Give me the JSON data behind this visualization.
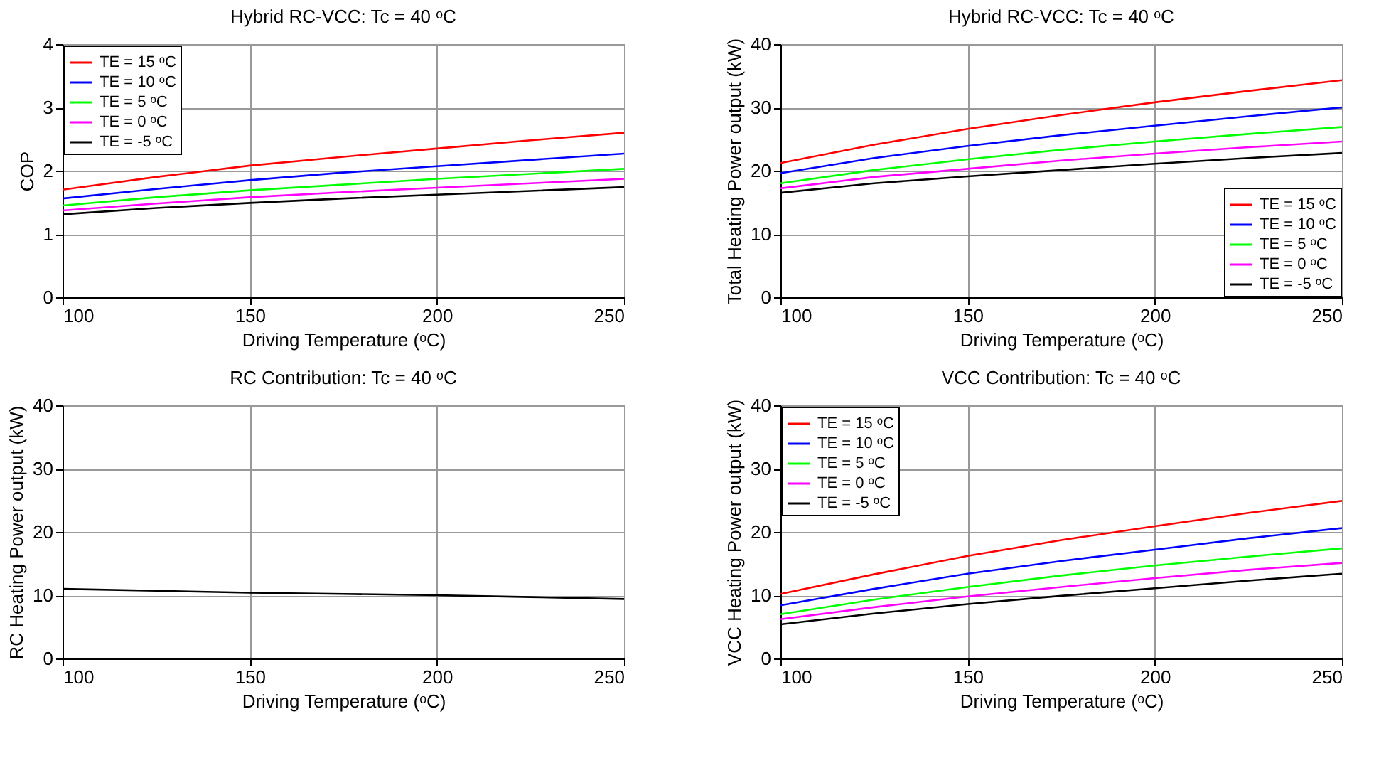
{
  "chart_data": [
    {
      "type": "line",
      "title": "Hybrid RC-VCC: Tc = 40 ᵒC",
      "xlabel": "Driving Temperature (ᵒC)",
      "ylabel": "COP",
      "x": [
        100,
        125,
        150,
        175,
        200,
        225,
        250
      ],
      "xlim": [
        100,
        250
      ],
      "xticks": [
        100,
        150,
        200,
        250
      ],
      "ylim": [
        0,
        4
      ],
      "yticks": [
        0,
        1,
        2,
        3,
        4
      ],
      "grid": true,
      "legend": "top left",
      "series": [
        {
          "name": "TE = 15 ᵒC",
          "color": "#ff0000",
          "values": [
            1.7,
            1.9,
            2.08,
            2.22,
            2.35,
            2.48,
            2.6
          ]
        },
        {
          "name": "TE = 10 ᵒC",
          "color": "#0000ff",
          "values": [
            1.56,
            1.71,
            1.85,
            1.97,
            2.07,
            2.17,
            2.27
          ]
        },
        {
          "name": "TE = 5 ᵒC",
          "color": "#00ff00",
          "values": [
            1.45,
            1.58,
            1.69,
            1.78,
            1.87,
            1.95,
            2.03
          ]
        },
        {
          "name": "TE = 0 ᵒC",
          "color": "#ff00ff",
          "values": [
            1.37,
            1.48,
            1.58,
            1.66,
            1.73,
            1.8,
            1.87
          ]
        },
        {
          "name": "TE = -5 ᵒC",
          "color": "#000000",
          "values": [
            1.31,
            1.41,
            1.49,
            1.56,
            1.62,
            1.68,
            1.74
          ]
        }
      ]
    },
    {
      "type": "line",
      "title": "Hybrid RC-VCC: Tc = 40 ᵒC",
      "xlabel": "Driving Temperature (ᵒC)",
      "ylabel": "Total Heating Power output (kW)",
      "x": [
        100,
        125,
        150,
        175,
        200,
        225,
        250
      ],
      "xlim": [
        100,
        250
      ],
      "xticks": [
        100,
        150,
        200,
        250
      ],
      "ylim": [
        0,
        40
      ],
      "yticks": [
        0,
        10,
        20,
        30,
        40
      ],
      "grid": true,
      "legend": "bottom right",
      "series": [
        {
          "name": "TE = 15 ᵒC",
          "color": "#ff0000",
          "values": [
            21.2,
            24.1,
            26.6,
            28.8,
            30.8,
            32.6,
            34.3
          ]
        },
        {
          "name": "TE = 10 ᵒC",
          "color": "#0000ff",
          "values": [
            19.6,
            22.0,
            23.9,
            25.6,
            27.1,
            28.6,
            30.0
          ]
        },
        {
          "name": "TE = 5 ᵒC",
          "color": "#00ff00",
          "values": [
            18.0,
            20.1,
            21.8,
            23.3,
            24.6,
            25.8,
            26.9
          ]
        },
        {
          "name": "TE = 0 ᵒC",
          "color": "#ff00ff",
          "values": [
            17.2,
            19.0,
            20.3,
            21.6,
            22.7,
            23.7,
            24.6
          ]
        },
        {
          "name": "TE = -5 ᵒC",
          "color": "#000000",
          "values": [
            16.5,
            18.0,
            19.1,
            20.1,
            21.1,
            22.0,
            22.8
          ]
        }
      ]
    },
    {
      "type": "line",
      "title": "RC Contribution: Tc = 40 ᵒC",
      "xlabel": "Driving Temperature (ᵒC)",
      "ylabel": "RC Heating Power output (kW)",
      "x": [
        100,
        125,
        150,
        175,
        200,
        225,
        250
      ],
      "xlim": [
        100,
        250
      ],
      "xticks": [
        100,
        150,
        200,
        250
      ],
      "ylim": [
        0,
        40
      ],
      "yticks": [
        0,
        10,
        20,
        30,
        40
      ],
      "grid": true,
      "series": [
        {
          "color": "#000000",
          "values": [
            11.0,
            10.7,
            10.4,
            10.2,
            10.0,
            9.7,
            9.4
          ]
        }
      ]
    },
    {
      "type": "line",
      "title": "VCC Contribution: Tc = 40 ᵒC",
      "xlabel": "Driving Temperature (ᵒC)",
      "ylabel": "VCC Heating Power output (kW)",
      "x": [
        100,
        125,
        150,
        175,
        200,
        225,
        250
      ],
      "xlim": [
        100,
        250
      ],
      "xticks": [
        100,
        150,
        200,
        250
      ],
      "ylim": [
        0,
        40
      ],
      "yticks": [
        0,
        10,
        20,
        30,
        40
      ],
      "grid": true,
      "legend": "top left",
      "series": [
        {
          "name": "TE = 15 ᵒC",
          "color": "#ff0000",
          "values": [
            10.2,
            13.3,
            16.2,
            18.7,
            20.9,
            23.0,
            24.9
          ]
        },
        {
          "name": "TE = 10 ᵒC",
          "color": "#0000ff",
          "values": [
            8.4,
            11.0,
            13.4,
            15.4,
            17.2,
            19.0,
            20.6
          ]
        },
        {
          "name": "TE = 5 ᵒC",
          "color": "#00ff00",
          "values": [
            7.0,
            9.3,
            11.3,
            13.1,
            14.7,
            16.1,
            17.4
          ]
        },
        {
          "name": "TE = 0 ᵒC",
          "color": "#ff00ff",
          "values": [
            6.2,
            8.1,
            9.8,
            11.3,
            12.7,
            14.0,
            15.1
          ]
        },
        {
          "name": "TE = -5 ᵒC",
          "color": "#000000",
          "values": [
            5.4,
            7.1,
            8.6,
            9.9,
            11.1,
            12.3,
            13.4
          ]
        }
      ]
    }
  ]
}
